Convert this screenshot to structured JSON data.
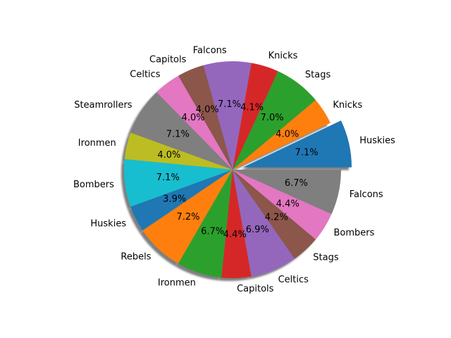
{
  "chart_data": {
    "type": "pie",
    "title": "",
    "start_angle_deg": 0,
    "direction": "counterclockwise",
    "shadow": true,
    "exploded": [
      "Huskies"
    ],
    "slices": [
      {
        "label": "Huskies",
        "pct": 7.1,
        "pct_label": "7.1%",
        "color": "#1f77b4"
      },
      {
        "label": "Knicks",
        "pct": 4.0,
        "pct_label": "4.0%",
        "color": "#ff7f0e"
      },
      {
        "label": "Stags",
        "pct": 7.0,
        "pct_label": "7.0%",
        "color": "#2ca02c"
      },
      {
        "label": "Knicks",
        "pct": 4.1,
        "pct_label": "4.1%",
        "color": "#d62728"
      },
      {
        "label": "Falcons",
        "pct": 7.1,
        "pct_label": "7.1%",
        "color": "#9467bd"
      },
      {
        "label": "Capitols",
        "pct": 4.0,
        "pct_label": "4.0%",
        "color": "#8c564b"
      },
      {
        "label": "Celtics",
        "pct": 4.0,
        "pct_label": "4.0%",
        "color": "#e377c2"
      },
      {
        "label": "Steamrollers",
        "pct": 7.1,
        "pct_label": "7.1%",
        "color": "#7f7f7f"
      },
      {
        "label": "Ironmen",
        "pct": 4.0,
        "pct_label": "4.0%",
        "color": "#bcbd22"
      },
      {
        "label": "Bombers",
        "pct": 7.1,
        "pct_label": "7.1%",
        "color": "#17becf"
      },
      {
        "label": "Huskies",
        "pct": 3.9,
        "pct_label": "3.9%",
        "color": "#1f77b4"
      },
      {
        "label": "Rebels",
        "pct": 7.2,
        "pct_label": "7.2%",
        "color": "#ff7f0e"
      },
      {
        "label": "Ironmen",
        "pct": 6.7,
        "pct_label": "6.7%",
        "color": "#2ca02c"
      },
      {
        "label": "Capitols",
        "pct": 4.4,
        "pct_label": "4.4%",
        "color": "#d62728"
      },
      {
        "label": "Celtics",
        "pct": 6.9,
        "pct_label": "6.9%",
        "color": "#9467bd"
      },
      {
        "label": "Stags",
        "pct": 4.2,
        "pct_label": "4.2%",
        "color": "#8c564b"
      },
      {
        "label": "Bombers",
        "pct": 4.4,
        "pct_label": "4.4%",
        "color": "#e377c2"
      },
      {
        "label": "Falcons",
        "pct": 6.7,
        "pct_label": "6.7%",
        "color": "#7f7f7f"
      }
    ]
  }
}
